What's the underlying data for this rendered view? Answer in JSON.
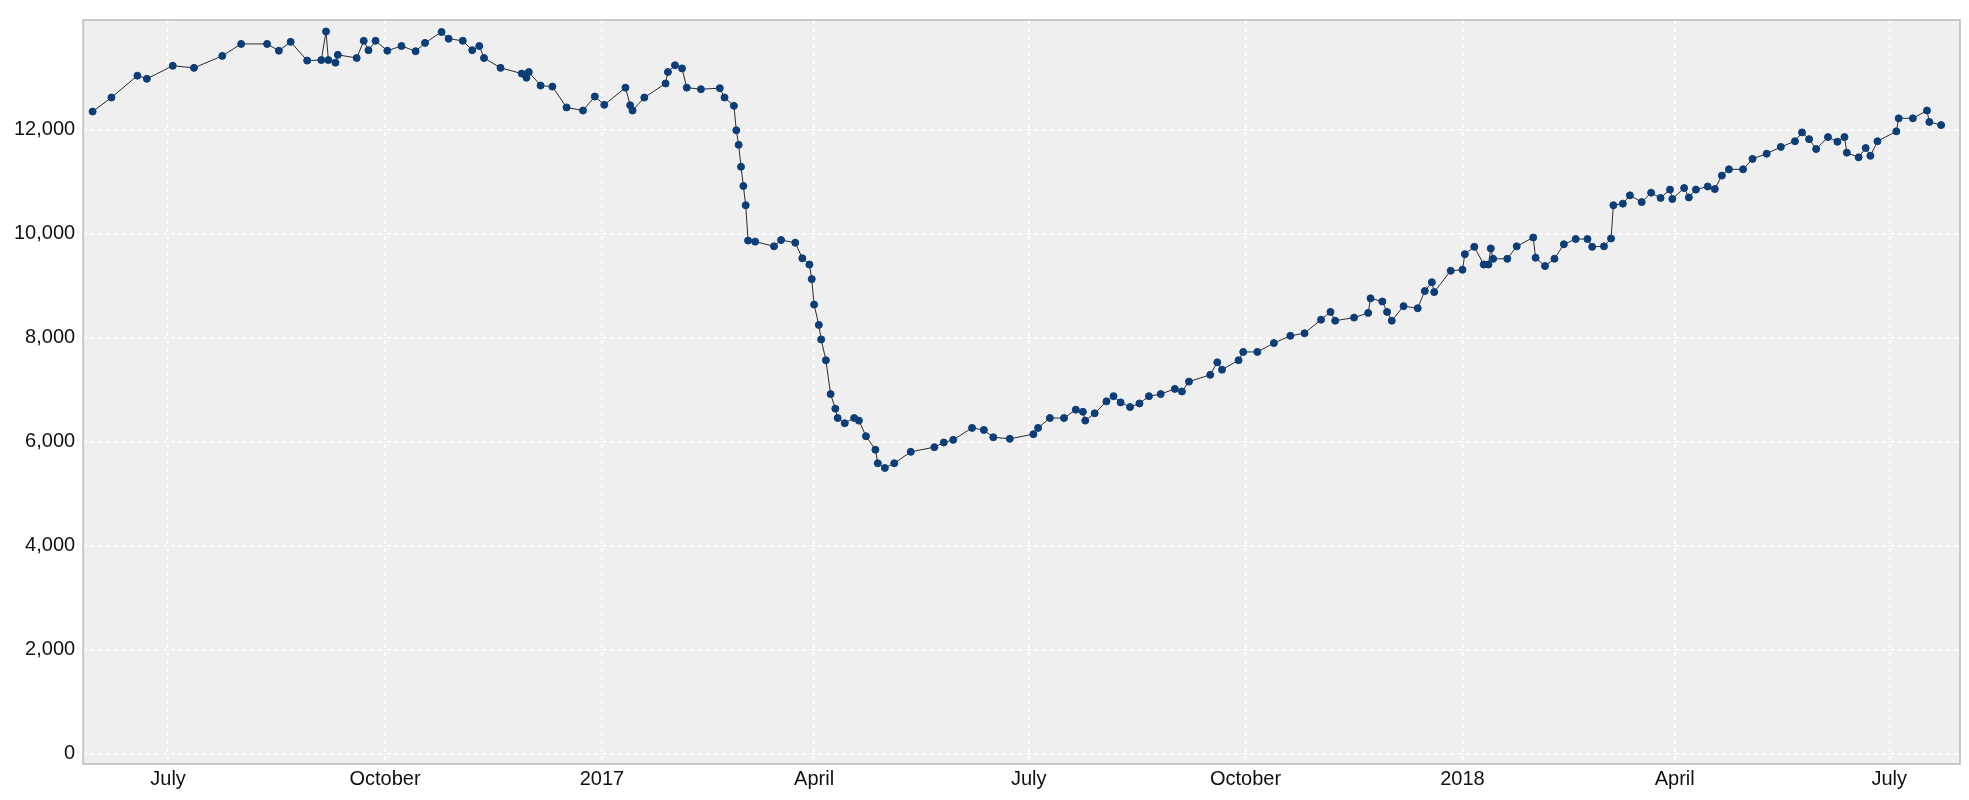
{
  "chart_data": {
    "type": "line",
    "marker": "circle",
    "line_style": "solid",
    "grid": true,
    "legend": false,
    "xlim": [
      "2016-05-26",
      "2018-07-31"
    ],
    "xticks": [
      {
        "value": "2016-07-01",
        "label": "July"
      },
      {
        "value": "2016-10-01",
        "label": "October"
      },
      {
        "value": "2017-01-01",
        "label": "2017"
      },
      {
        "value": "2017-04-01",
        "label": "April"
      },
      {
        "value": "2017-07-01",
        "label": "July"
      },
      {
        "value": "2017-10-01",
        "label": "October"
      },
      {
        "value": "2018-01-01",
        "label": "2018"
      },
      {
        "value": "2018-04-01",
        "label": "April"
      },
      {
        "value": "2018-07-01",
        "label": "July"
      }
    ],
    "ylim": [
      -200,
      14100
    ],
    "yticks": [
      0,
      {
        "value": 2000,
        "label": "2,000"
      },
      {
        "value": 4000,
        "label": "4,000"
      },
      {
        "value": 6000,
        "label": "6,000"
      },
      {
        "value": 8000,
        "label": "8,000"
      },
      {
        "value": 10000,
        "label": "10,000"
      },
      {
        "value": 12000,
        "label": "12,000"
      }
    ],
    "x": [
      "2016-05-30",
      "2016-06-07",
      "2016-06-18",
      "2016-06-22",
      "2016-07-03",
      "2016-07-12",
      "2016-07-24",
      "2016-08-01",
      "2016-08-12",
      "2016-08-17",
      "2016-08-22",
      "2016-08-29",
      "2016-09-04",
      "2016-09-06",
      "2016-09-07",
      "2016-09-10",
      "2016-09-11",
      "2016-09-19",
      "2016-09-22",
      "2016-09-24",
      "2016-09-27",
      "2016-10-02",
      "2016-10-08",
      "2016-10-14",
      "2016-10-18",
      "2016-10-25",
      "2016-10-28",
      "2016-11-03",
      "2016-11-07",
      "2016-11-10",
      "2016-11-12",
      "2016-11-19",
      "2016-11-28",
      "2016-11-30",
      "2016-12-01",
      "2016-12-06",
      "2016-12-11",
      "2016-12-17",
      "2016-12-24",
      "2016-12-29",
      "2017-01-02",
      "2017-01-11",
      "2017-01-13",
      "2017-01-14",
      "2017-01-19",
      "2017-01-28",
      "2017-01-29",
      "2017-02-01",
      "2017-02-04",
      "2017-02-06",
      "2017-02-12",
      "2017-02-20",
      "2017-02-22",
      "2017-02-26",
      "2017-02-27",
      "2017-02-28",
      "2017-03-01",
      "2017-03-02",
      "2017-03-03",
      "2017-03-04",
      "2017-03-07",
      "2017-03-15",
      "2017-03-18",
      "2017-03-24",
      "2017-03-27",
      "2017-03-30",
      "2017-03-31",
      "2017-04-01",
      "2017-04-03",
      "2017-04-04",
      "2017-04-06",
      "2017-04-08",
      "2017-04-10",
      "2017-04-11",
      "2017-04-14",
      "2017-04-18",
      "2017-04-20",
      "2017-04-23",
      "2017-04-27",
      "2017-04-28",
      "2017-05-01",
      "2017-05-05",
      "2017-05-12",
      "2017-05-22",
      "2017-05-26",
      "2017-05-30",
      "2017-06-07",
      "2017-06-12",
      "2017-06-16",
      "2017-06-23",
      "2017-07-03",
      "2017-07-05",
      "2017-07-10",
      "2017-07-16",
      "2017-07-21",
      "2017-07-24",
      "2017-07-25",
      "2017-07-29",
      "2017-08-03",
      "2017-08-06",
      "2017-08-09",
      "2017-08-13",
      "2017-08-17",
      "2017-08-21",
      "2017-08-26",
      "2017-09-01",
      "2017-09-04",
      "2017-09-07",
      "2017-09-16",
      "2017-09-19",
      "2017-09-21",
      "2017-09-28",
      "2017-09-30",
      "2017-10-06",
      "2017-10-13",
      "2017-10-20",
      "2017-10-26",
      "2017-11-02",
      "2017-11-06",
      "2017-11-08",
      "2017-11-16",
      "2017-11-22",
      "2017-11-23",
      "2017-11-28",
      "2017-11-30",
      "2017-12-02",
      "2017-12-07",
      "2017-12-13",
      "2017-12-16",
      "2017-12-19",
      "2017-12-20",
      "2017-12-27",
      "2018-01-01",
      "2018-01-02",
      "2018-01-06",
      "2018-01-10",
      "2018-01-12",
      "2018-01-13",
      "2018-01-14",
      "2018-01-20",
      "2018-01-24",
      "2018-01-31",
      "2018-02-01",
      "2018-02-05",
      "2018-02-09",
      "2018-02-13",
      "2018-02-18",
      "2018-02-23",
      "2018-02-25",
      "2018-03-02",
      "2018-03-05",
      "2018-03-06",
      "2018-03-10",
      "2018-03-13",
      "2018-03-18",
      "2018-03-22",
      "2018-03-26",
      "2018-03-30",
      "2018-03-31",
      "2018-04-05",
      "2018-04-07",
      "2018-04-10",
      "2018-04-15",
      "2018-04-18",
      "2018-04-21",
      "2018-04-24",
      "2018-04-30",
      "2018-05-04",
      "2018-05-10",
      "2018-05-16",
      "2018-05-22",
      "2018-05-25",
      "2018-05-28",
      "2018-05-31",
      "2018-06-05",
      "2018-06-09",
      "2018-06-12",
      "2018-06-13",
      "2018-06-18",
      "2018-06-21",
      "2018-06-23",
      "2018-06-26",
      "2018-07-04",
      "2018-07-05",
      "2018-07-11",
      "2018-07-17",
      "2018-07-18",
      "2018-07-23"
    ],
    "series": [
      {
        "color": "#0b3d78",
        "values": [
          12340,
          12610,
          13030,
          12970,
          13220,
          13180,
          13410,
          13640,
          13640,
          13510,
          13680,
          13320,
          13330,
          13880,
          13330,
          13280,
          13430,
          13370,
          13700,
          13520,
          13700,
          13510,
          13600,
          13500,
          13660,
          13870,
          13740,
          13700,
          13520,
          13600,
          13370,
          13180,
          13070,
          12990,
          13100,
          12840,
          12820,
          12420,
          12360,
          12630,
          12470,
          12800,
          12460,
          12360,
          12610,
          12880,
          13100,
          13230,
          13170,
          12800,
          12770,
          12790,
          12610,
          12450,
          11980,
          11700,
          11280,
          10910,
          10540,
          9860,
          9840,
          9750,
          9870,
          9820,
          9520,
          9400,
          9120,
          8630,
          8240,
          7960,
          7560,
          6910,
          6630,
          6450,
          6350,
          6450,
          6400,
          6100,
          5840,
          5580,
          5490,
          5580,
          5800,
          5890,
          5980,
          6030,
          6260,
          6220,
          6080,
          6050,
          6140,
          6260,
          6450,
          6450,
          6610,
          6570,
          6400,
          6540,
          6770,
          6870,
          6750,
          6660,
          6730,
          6870,
          6910,
          7010,
          6960,
          7150,
          7280,
          7520,
          7380,
          7560,
          7720,
          7720,
          7890,
          8030,
          8080,
          8340,
          8490,
          8320,
          8380,
          8470,
          8750,
          8690,
          8490,
          8320,
          8600,
          8560,
          8890,
          9060,
          8870,
          9280,
          9300,
          9600,
          9740,
          9400,
          9400,
          9710,
          9510,
          9510,
          9750,
          9920,
          9530,
          9370,
          9510,
          9790,
          9890,
          9890,
          9740,
          9750,
          9900,
          10540,
          10570,
          10730,
          10600,
          10780,
          10680,
          10840,
          10660,
          10870,
          10690,
          10840,
          10900,
          10850,
          11110,
          11230,
          11230,
          11430,
          11530,
          11660,
          11770,
          11940,
          11810,
          11620,
          11850,
          11760,
          11850,
          11550,
          11460,
          11640,
          11490,
          11770,
          11960,
          12210,
          12210,
          12360,
          12140,
          12080
        ]
      }
    ]
  }
}
